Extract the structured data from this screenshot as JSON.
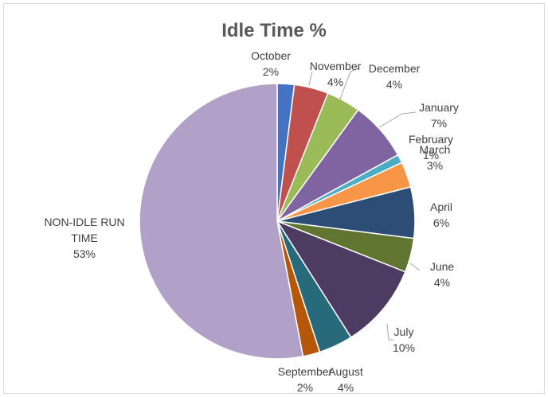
{
  "chart_data": {
    "type": "pie",
    "title": "Idle Time %",
    "slices": [
      {
        "label": "October",
        "pct_label": "2%",
        "value": 2,
        "color": "#4472c4"
      },
      {
        "label": "November",
        "pct_label": "4%",
        "value": 4,
        "color": "#c0504d"
      },
      {
        "label": "December",
        "pct_label": "4%",
        "value": 4,
        "color": "#9bbb59"
      },
      {
        "label": "January",
        "pct_label": "7%",
        "value": 7,
        "color": "#8064a2"
      },
      {
        "label": "February",
        "pct_label": "1%",
        "value": 1,
        "color": "#4bacc6"
      },
      {
        "label": "March",
        "pct_label": "3%",
        "value": 3,
        "color": "#f79646"
      },
      {
        "label": "April",
        "pct_label": "6%",
        "value": 6,
        "color": "#2c4d75"
      },
      {
        "label": "June",
        "pct_label": "4%",
        "value": 4,
        "color": "#5f7530"
      },
      {
        "label": "July",
        "pct_label": "10%",
        "value": 10,
        "color": "#4d3b62"
      },
      {
        "label": "August",
        "pct_label": "4%",
        "value": 4,
        "color": "#276a7c"
      },
      {
        "label": "September",
        "pct_label": "2%",
        "value": 2,
        "color": "#b65708"
      },
      {
        "label": "NON-IDLE RUN TIME",
        "pct_label": "53%",
        "value": 53,
        "color": "#b1a0c7"
      }
    ]
  }
}
